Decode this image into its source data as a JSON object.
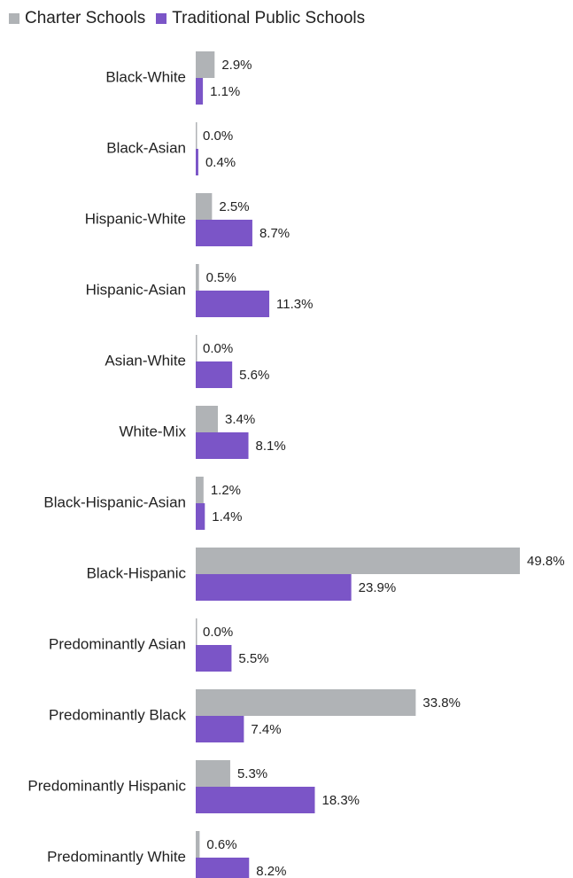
{
  "chart_data": {
    "type": "bar",
    "orientation": "horizontal",
    "categories": [
      "Black-White",
      "Black-Asian",
      "Hispanic-White",
      "Hispanic-Asian",
      "Asian-White",
      "White-Mix",
      "Black-Hispanic-Asian",
      "Black-Hispanic",
      "Predominantly Asian",
      "Predominantly Black",
      "Predominantly Hispanic",
      "Predominantly White"
    ],
    "series": [
      {
        "name": "Charter Schools",
        "color": "#b0b3b6",
        "values": [
          2.9,
          0.0,
          2.5,
          0.5,
          0.0,
          3.4,
          1.2,
          49.8,
          0.0,
          33.8,
          5.3,
          0.6
        ],
        "labels": [
          "2.9%",
          "0.0%",
          "2.5%",
          "0.5%",
          "0.0%",
          "3.4%",
          "1.2%",
          "49.8%",
          "0.0%",
          "33.8%",
          "5.3%",
          "0.6%"
        ]
      },
      {
        "name": "Traditional Public Schools",
        "color": "#7b55c7",
        "values": [
          1.1,
          0.4,
          8.7,
          11.3,
          5.6,
          8.1,
          1.4,
          23.9,
          5.5,
          7.4,
          18.3,
          8.2
        ],
        "labels": [
          "1.1%",
          "0.4%",
          "8.7%",
          "11.3%",
          "5.6%",
          "8.1%",
          "1.4%",
          "23.9%",
          "5.5%",
          "7.4%",
          "18.3%",
          "8.2%"
        ]
      }
    ],
    "xlim": [
      0,
      49.8
    ],
    "grid": false,
    "legend": "top-left"
  }
}
